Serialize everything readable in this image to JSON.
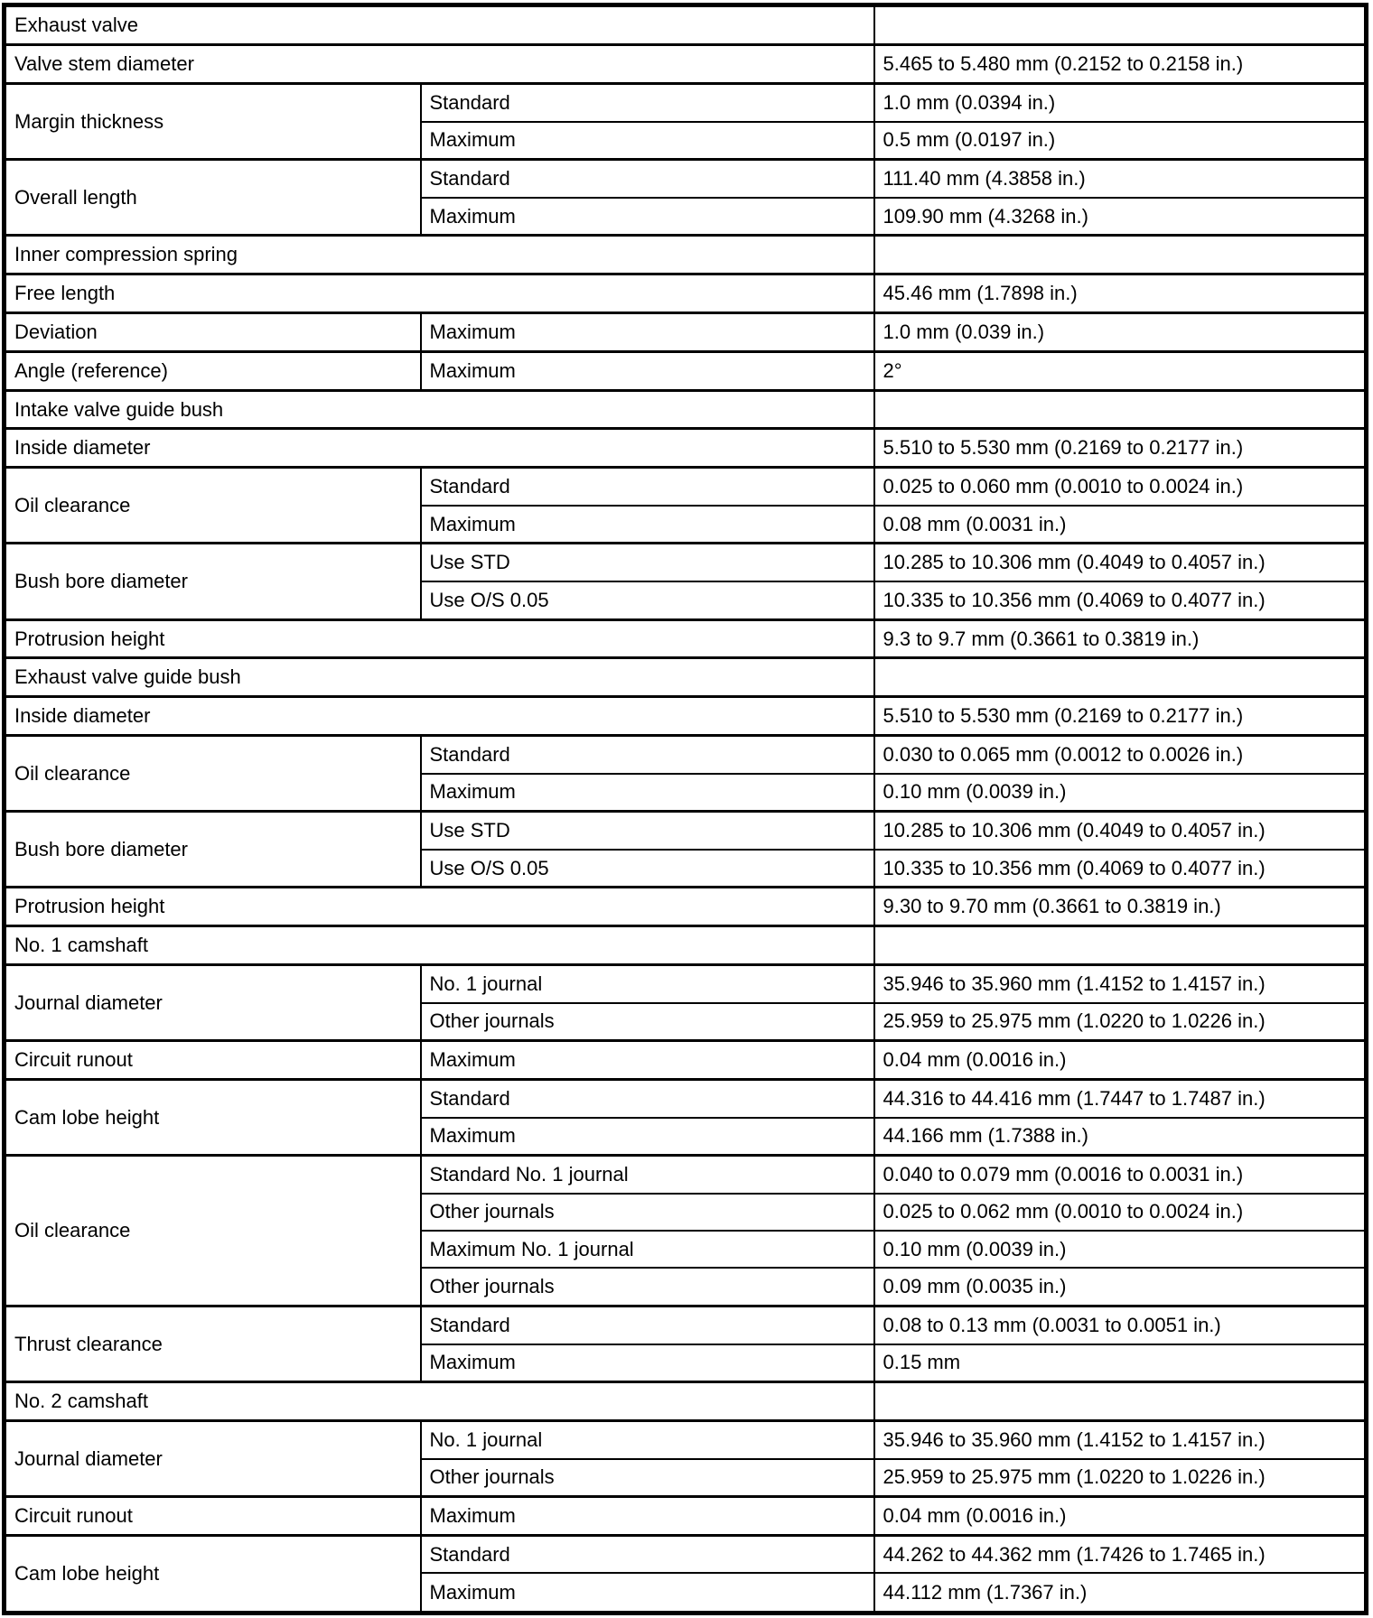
{
  "colors": {
    "background": "#ffffff",
    "border": "#000000",
    "text": "#000000"
  },
  "table": {
    "description": "Service specifications table",
    "groups": [
      {
        "label": "Exhaust valve",
        "section": true,
        "rows": [
          {
            "value": ""
          }
        ]
      },
      {
        "label": "Valve stem diameter",
        "rows": [
          {
            "value": "5.465 to 5.480 mm (0.2152 to 0.2158 in.)"
          }
        ]
      },
      {
        "label": "Margin thickness",
        "rows": [
          {
            "sub": "Standard",
            "value": "1.0 mm (0.0394 in.)"
          },
          {
            "sub": "Maximum",
            "value": "0.5 mm (0.0197 in.)"
          }
        ]
      },
      {
        "label": "Overall length",
        "rows": [
          {
            "sub": "Standard",
            "value": "111.40 mm (4.3858 in.)"
          },
          {
            "sub": "Maximum",
            "value": "109.90 mm (4.3268 in.)"
          }
        ]
      },
      {
        "label": "Inner compression spring",
        "section": true,
        "rows": [
          {
            "value": ""
          }
        ]
      },
      {
        "label": "Free length",
        "rows": [
          {
            "value": "45.46 mm (1.7898 in.)"
          }
        ]
      },
      {
        "label": "Deviation",
        "rows": [
          {
            "sub": "Maximum",
            "value": "1.0 mm (0.039 in.)"
          }
        ]
      },
      {
        "label": "Angle (reference)",
        "rows": [
          {
            "sub": "Maximum",
            "value": "2°"
          }
        ]
      },
      {
        "label": "Intake valve guide bush",
        "section": true,
        "rows": [
          {
            "value": ""
          }
        ]
      },
      {
        "label": "Inside diameter",
        "rows": [
          {
            "value": "5.510 to 5.530 mm (0.2169 to 0.2177 in.)"
          }
        ]
      },
      {
        "label": "Oil clearance",
        "rows": [
          {
            "sub": "Standard",
            "value": "0.025 to 0.060 mm (0.0010 to 0.0024 in.)"
          },
          {
            "sub": "Maximum",
            "value": "0.08 mm (0.0031 in.)"
          }
        ]
      },
      {
        "label": "Bush bore diameter",
        "rows": [
          {
            "sub": "Use STD",
            "value": "10.285 to 10.306 mm (0.4049 to 0.4057 in.)"
          },
          {
            "sub": "Use O/S 0.05",
            "value": "10.335 to 10.356 mm (0.4069 to 0.4077 in.)"
          }
        ]
      },
      {
        "label": "Protrusion height",
        "rows": [
          {
            "value": "9.3 to 9.7 mm (0.3661 to 0.3819 in.)"
          }
        ]
      },
      {
        "label": "Exhaust valve guide bush",
        "section": true,
        "rows": [
          {
            "value": ""
          }
        ]
      },
      {
        "label": "Inside diameter",
        "rows": [
          {
            "value": "5.510 to 5.530 mm (0.2169 to 0.2177 in.)"
          }
        ]
      },
      {
        "label": "Oil clearance",
        "rows": [
          {
            "sub": "Standard",
            "value": "0.030 to 0.065 mm (0.0012 to 0.0026 in.)"
          },
          {
            "sub": "Maximum",
            "value": "0.10 mm (0.0039 in.)"
          }
        ]
      },
      {
        "label": "Bush bore diameter",
        "rows": [
          {
            "sub": "Use STD",
            "value": "10.285 to 10.306 mm (0.4049 to 0.4057 in.)"
          },
          {
            "sub": "Use O/S 0.05",
            "value": "10.335 to 10.356 mm (0.4069 to 0.4077 in.)"
          }
        ]
      },
      {
        "label": "Protrusion height",
        "rows": [
          {
            "value": "9.30 to 9.70 mm (0.3661 to 0.3819 in.)"
          }
        ]
      },
      {
        "label": "No. 1 camshaft",
        "section": true,
        "rows": [
          {
            "value": ""
          }
        ]
      },
      {
        "label": "Journal diameter",
        "rows": [
          {
            "sub": "No. 1 journal",
            "value": "35.946 to 35.960 mm (1.4152 to 1.4157 in.)"
          },
          {
            "sub": "Other journals",
            "value": "25.959 to 25.975 mm (1.0220 to 1.0226 in.)"
          }
        ]
      },
      {
        "label": "Circuit runout",
        "rows": [
          {
            "sub": "Maximum",
            "value": "0.04 mm (0.0016 in.)"
          }
        ]
      },
      {
        "label": "Cam lobe height",
        "rows": [
          {
            "sub": "Standard",
            "value": "44.316 to 44.416 mm (1.7447 to 1.7487 in.)"
          },
          {
            "sub": "Maximum",
            "value": "44.166 mm (1.7388 in.)"
          }
        ]
      },
      {
        "label": "Oil clearance",
        "rows": [
          {
            "sub": "Standard No. 1 journal",
            "value": "0.040 to 0.079 mm (0.0016 to 0.0031 in.)"
          },
          {
            "sub": "Other journals",
            "value": "0.025 to 0.062 mm (0.0010 to 0.0024 in.)"
          },
          {
            "sub": "Maximum No. 1 journal",
            "value": "0.10 mm (0.0039 in.)"
          },
          {
            "sub": "Other journals",
            "value": "0.09 mm (0.0035 in.)"
          }
        ]
      },
      {
        "label": "Thrust clearance",
        "rows": [
          {
            "sub": "Standard",
            "value": "0.08 to 0.13 mm (0.0031 to 0.0051 in.)"
          },
          {
            "sub": "Maximum",
            "value": "0.15 mm"
          }
        ]
      },
      {
        "label": "No. 2 camshaft",
        "section": true,
        "rows": [
          {
            "value": ""
          }
        ]
      },
      {
        "label": "Journal diameter",
        "rows": [
          {
            "sub": "No. 1 journal",
            "value": "35.946 to 35.960 mm (1.4152 to 1.4157 in.)"
          },
          {
            "sub": "Other journals",
            "value": "25.959 to 25.975 mm (1.0220 to 1.0226 in.)"
          }
        ]
      },
      {
        "label": "Circuit runout",
        "rows": [
          {
            "sub": "Maximum",
            "value": "0.04 mm (0.0016 in.)"
          }
        ]
      },
      {
        "label": "Cam lobe height",
        "rows": [
          {
            "sub": "Standard",
            "value": "44.262 to 44.362 mm (1.7426 to 1.7465 in.)"
          },
          {
            "sub": "Maximum",
            "value": "44.112 mm (1.7367 in.)"
          }
        ]
      }
    ]
  }
}
